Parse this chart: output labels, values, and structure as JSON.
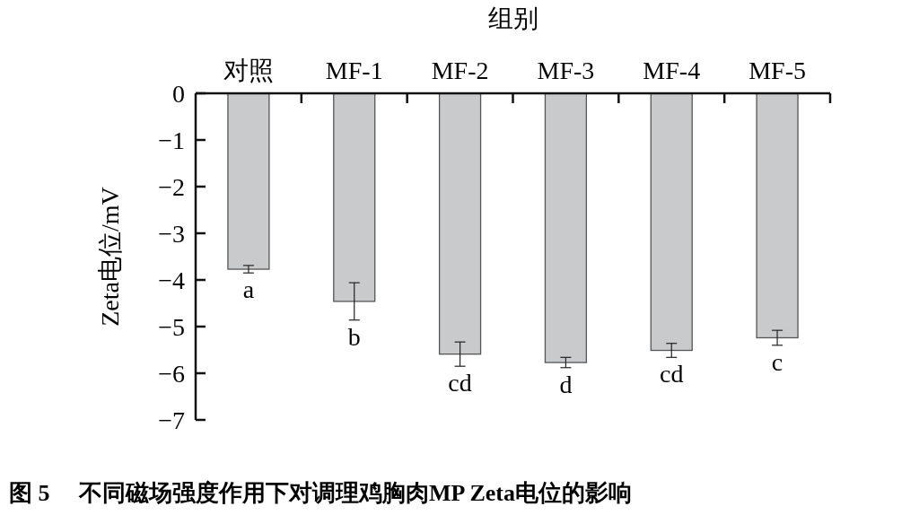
{
  "chart_data": {
    "type": "bar",
    "xlabel": "组别",
    "ylabel": "Zeta电位/mV",
    "categories": [
      "对照",
      "MF-1",
      "MF-2",
      "MF-3",
      "MF-4",
      "MF-5"
    ],
    "values": [
      -3.77,
      -4.46,
      -5.59,
      -5.77,
      -5.51,
      -5.24
    ],
    "errors": [
      0.08,
      0.4,
      0.26,
      0.11,
      0.15,
      0.16
    ],
    "color": "#c8cacb",
    "ylim": [
      -7,
      0
    ],
    "yticks": [
      {
        "value": -7,
        "label": "−7"
      },
      {
        "value": -6,
        "label": "−6"
      },
      {
        "value": -5,
        "label": "−5"
      },
      {
        "value": -4,
        "label": "−4"
      },
      {
        "value": -3,
        "label": "−3"
      },
      {
        "value": -2,
        "label": "−2"
      },
      {
        "value": -1,
        "label": "−1"
      },
      0
    ],
    "annotations": [
      {
        "text": "a",
        "x": "对照",
        "y": -3.85
      },
      {
        "text": "b",
        "x": "MF-1",
        "y": -4.86
      },
      {
        "text": "cd",
        "x": "MF-2",
        "y": -5.85
      },
      {
        "text": "d",
        "x": "MF-3",
        "y": -5.88
      },
      {
        "text": "cd",
        "x": "MF-4",
        "y": -5.66
      },
      {
        "text": "c",
        "x": "MF-5",
        "y": -5.4
      },
      "图 5　 不同磁场强度作用下对调理鸡胸肉MP Zeta电位的影响"
    ]
  }
}
